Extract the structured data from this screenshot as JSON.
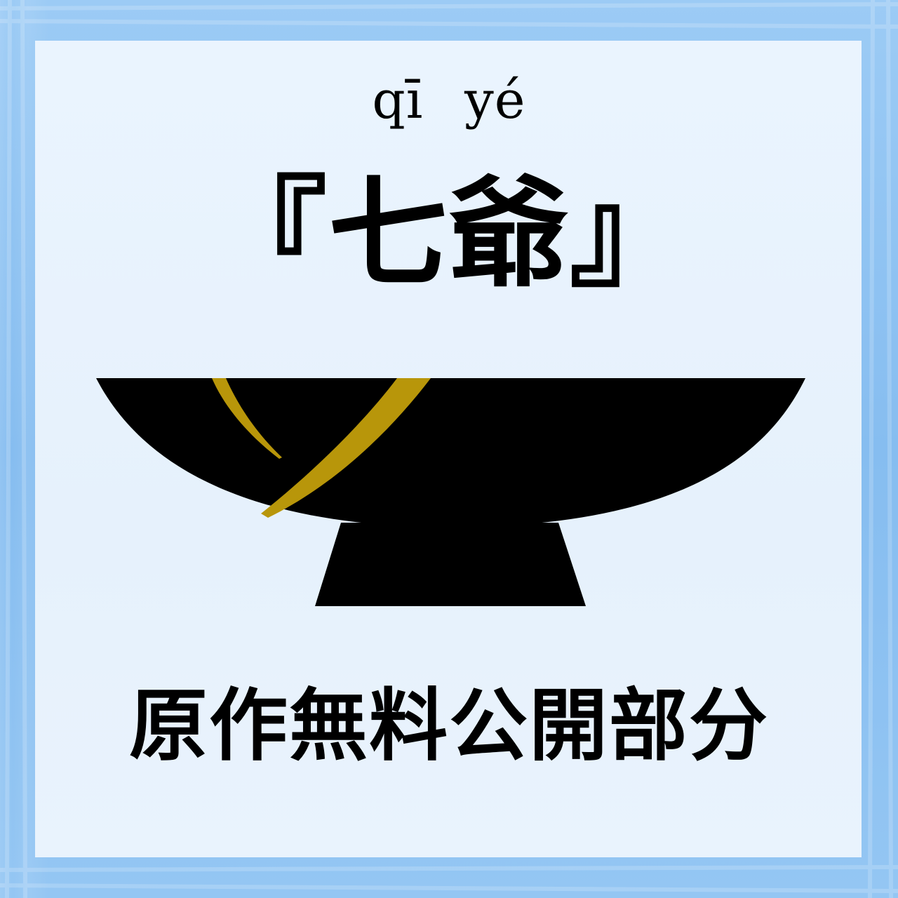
{
  "pinyin": "qī yé",
  "title": "『七爺』",
  "caption": "原作無料公開部分",
  "icons": {
    "bowl": "kintsugi-bowl-icon"
  },
  "colors": {
    "background": "#8ec3f2",
    "card": "#e9f3fd",
    "bowl": "#000000",
    "crack": "#b8960a",
    "text": "#000000"
  }
}
